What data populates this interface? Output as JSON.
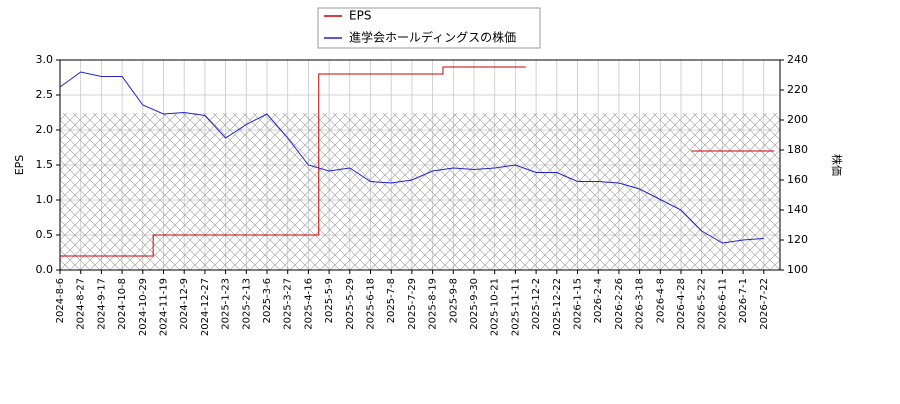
{
  "chart_data": {
    "type": "line",
    "categories": [
      "2024-8-6",
      "2024-8-27",
      "2024-9-17",
      "2024-10-8",
      "2024-10-29",
      "2024-11-19",
      "2024-12-9",
      "2024-12-27",
      "2025-1-23",
      "2025-2-13",
      "2025-3-6",
      "2025-3-27",
      "2025-4-16",
      "2025-5-9",
      "2025-5-29",
      "2025-6-18",
      "2025-7-8",
      "2025-7-29",
      "2025-8-19",
      "2025-9-8",
      "2025-9-30",
      "2025-10-21",
      "2025-11-11",
      "2025-12-2",
      "2025-12-22",
      "2026-1-15",
      "2026-2-4",
      "2026-2-26",
      "2026-3-18",
      "2026-4-8",
      "2026-4-28",
      "2026-5-22",
      "2026-6-11",
      "2026-7-1",
      "2026-7-22"
    ],
    "series": [
      {
        "name": "EPS",
        "color": "#cc0000",
        "step": true,
        "values": [
          0.2,
          0.2,
          0.2,
          0.2,
          0.2,
          0.5,
          0.5,
          0.5,
          0.5,
          0.5,
          0.5,
          0.5,
          0.5,
          2.8,
          2.8,
          2.8,
          2.8,
          2.8,
          2.8,
          2.9,
          2.9,
          2.9,
          2.9,
          null,
          null,
          null,
          null,
          null,
          null,
          null,
          null,
          1.7,
          1.7,
          1.7,
          1.7
        ]
      },
      {
        "name": "進学会ホールディングスの株価",
        "color": "#2222cc",
        "axis": "y2",
        "values": [
          222,
          232,
          229,
          229,
          210,
          204,
          205,
          203,
          188,
          197,
          204,
          188,
          170,
          166,
          168,
          159,
          158,
          160,
          166,
          168,
          167,
          168,
          170,
          165,
          165,
          159,
          159,
          158,
          154,
          147,
          140,
          126,
          118,
          120,
          121
        ]
      }
    ],
    "y_label": "EPS",
    "y2_label": "株価",
    "ylim": [
      0,
      3.0
    ],
    "yticks": [
      {
        "value": 0,
        "label": "0.0"
      },
      0.5,
      {
        "value": 1,
        "label": "1.0"
      },
      1.5,
      {
        "value": 2,
        "label": "2.0"
      },
      2.5,
      {
        "value": 3,
        "label": "3.0"
      }
    ],
    "y2lim": [
      100,
      240
    ],
    "y2ticks": [
      100,
      120,
      140,
      160,
      180,
      200,
      220,
      240
    ],
    "grid": true
  }
}
